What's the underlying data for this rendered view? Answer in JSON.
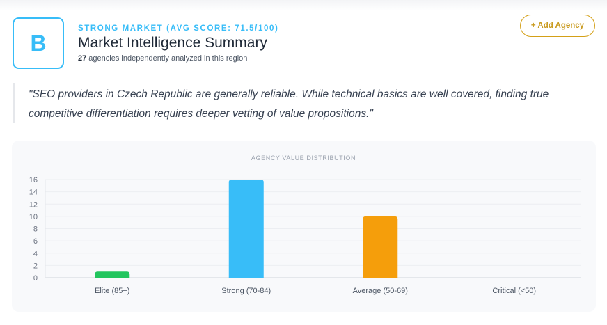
{
  "header": {
    "grade": "B",
    "eyebrow": "STRONG MARKET (AVG SCORE: 71.5/100)",
    "title": "Market Intelligence Summary",
    "agency_count": "27",
    "subline_rest": " agencies independently analyzed in this region",
    "add_button": "+ Add Agency"
  },
  "quote": "\"SEO providers in Czech Republic are generally reliable. While technical basics are well covered, finding true competitive differentiation requires deeper vetting of value propositions.\"",
  "colors": {
    "accent": "#38bdf8",
    "gold": "#d4a017",
    "elite": "#22c55e",
    "strong": "#38bdf8",
    "average": "#f59e0b",
    "critical": "#ef4444"
  },
  "chart_data": {
    "type": "bar",
    "title": "AGENCY VALUE DISTRIBUTION",
    "categories": [
      "Elite (85+)",
      "Strong (70-84)",
      "Average (50-69)",
      "Critical (<50)"
    ],
    "values": [
      1,
      16,
      10,
      0
    ],
    "colors": [
      "#22c55e",
      "#38bdf8",
      "#f59e0b",
      "#ef4444"
    ],
    "yticks": [
      0,
      2,
      4,
      6,
      8,
      10,
      12,
      14,
      16
    ],
    "ylim": [
      0,
      16
    ],
    "xlabel": "",
    "ylabel": "",
    "grid": true
  }
}
